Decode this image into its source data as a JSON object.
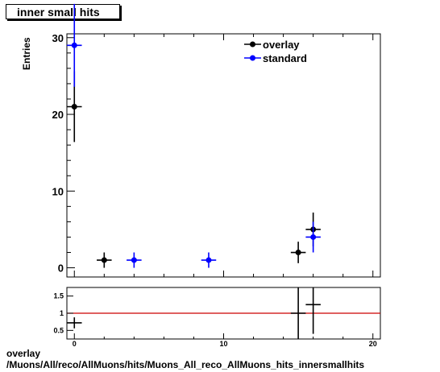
{
  "title": "inner small hits",
  "footer": {
    "line1": "overlay",
    "line2": "/Muons/All/reco/AllMuons/hits/Muons_All_reco_AllMuons_hits_innersmallhits"
  },
  "chart_data": [
    {
      "type": "scatter",
      "ylabel": "Entries",
      "xlim": [
        -0.5,
        20.5
      ],
      "ylim": [
        -1.2,
        30.5
      ],
      "y_ticks": [
        0,
        10,
        20,
        30
      ],
      "legend_position": "top-right",
      "series": [
        {
          "name": "overlay",
          "color": "#000000",
          "points": [
            {
              "x": 0,
              "y": 21,
              "xerr": 0.5,
              "yerr": 4.6
            },
            {
              "x": 2,
              "y": 1,
              "xerr": 0.5,
              "yerr": 1.0
            },
            {
              "x": 15,
              "y": 2,
              "xerr": 0.5,
              "yerr": 1.4
            },
            {
              "x": 16,
              "y": 5,
              "xerr": 0.5,
              "yerr": 2.2
            }
          ]
        },
        {
          "name": "standard",
          "color": "#0000ff",
          "points": [
            {
              "x": 0,
              "y": 29,
              "xerr": 0.5,
              "yerr": 5.4
            },
            {
              "x": 4,
              "y": 1,
              "xerr": 0.5,
              "yerr": 1.0
            },
            {
              "x": 9,
              "y": 1,
              "xerr": 0.5,
              "yerr": 1.0
            },
            {
              "x": 16,
              "y": 4,
              "xerr": 0.5,
              "yerr": 2.0
            }
          ]
        }
      ]
    },
    {
      "type": "scatter",
      "xlim": [
        -0.5,
        20.5
      ],
      "ylim": [
        0.25,
        1.75
      ],
      "x_ticks": [
        0,
        10,
        20
      ],
      "y_ticks": [
        0.5,
        1,
        1.5
      ],
      "reference_line": {
        "y": 1,
        "color": "#cc0000"
      },
      "points": [
        {
          "x": 0,
          "y": 0.72,
          "xerr": 0.5,
          "yerr": 0.16
        },
        {
          "x": 15,
          "y": 1.0,
          "xerr": 0.5,
          "yerr": 1.0
        },
        {
          "x": 16,
          "y": 1.25,
          "xerr": 0.5,
          "yerr": 0.85
        }
      ]
    }
  ]
}
